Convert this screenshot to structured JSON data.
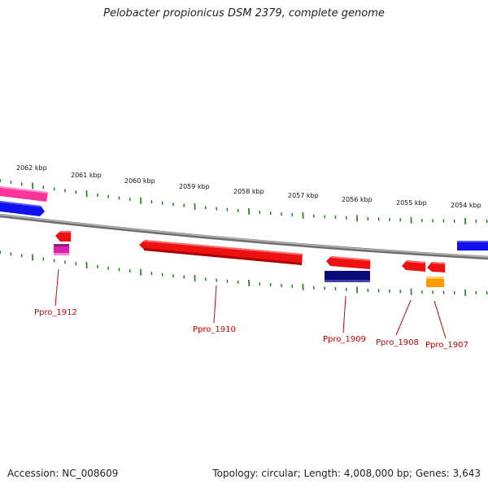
{
  "title": "Pelobacter propionicus DSM 2379, complete genome",
  "footer": {
    "accession": "Accession: NC_008609",
    "summary": "Topology: circular; Length: 4,008,000 bp; Genes: 3,643"
  },
  "tick_labels": [
    "2062 kbp",
    "2061 kbp",
    "2060 kbp",
    "2059 kbp",
    "2058 kbp",
    "2057 kbp",
    "2056 kbp",
    "2055 kbp",
    "2054 kbp"
  ],
  "gene_labels": [
    "Ppro_1912",
    "Ppro_1910",
    "Ppro_1909",
    "Ppro_1908",
    "Ppro_1907"
  ],
  "colors": {
    "backbone": "#8a8a8a",
    "tick": "#1a7a1a",
    "label": "#cc0000",
    "red_gene": "#ee1111",
    "pink_gene": "#ff3399",
    "blue_gene": "#1111ee",
    "navy_gene": "#0a0a7a",
    "orange_gene": "#ff9900",
    "magenta_gene": "#dd22aa"
  }
}
